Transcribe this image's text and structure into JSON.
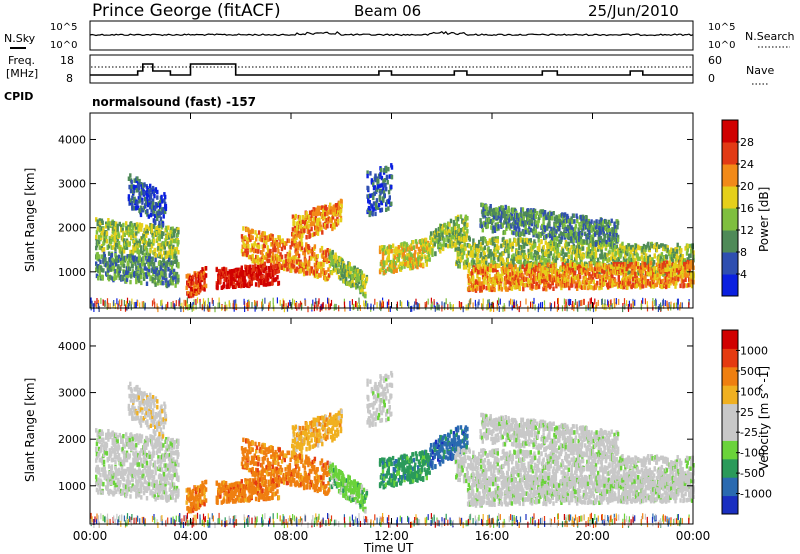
{
  "header": {
    "station": "Prince George (fitACF)",
    "beam": "Beam 06",
    "date": "25/Jun/2010"
  },
  "noise_panel": {
    "left_label": "N.Sky",
    "right_label": "N.Search",
    "left_ticks": [
      "10^5",
      "10^0"
    ],
    "right_ticks": [
      "10^5",
      "10^0"
    ]
  },
  "freq_panel": {
    "left_label_1": "Freq.",
    "left_label_2": "[MHz]",
    "right_label": "Nave",
    "left_ticks": [
      "18",
      "8"
    ],
    "right_ticks": [
      "60",
      "0"
    ],
    "cpid_label": "CPID",
    "cpid_value": "normalsound (fast) -157"
  },
  "chart_data": [
    {
      "type": "heatmap",
      "title": "",
      "ylabel": "Slant Range [km]",
      "xlabel": "",
      "ylim": [
        180,
        4600
      ],
      "xlim": [
        "00:00",
        "24:00"
      ],
      "y_ticks": [
        "1000",
        "2000",
        "3000",
        "4000"
      ],
      "x_ticks": [
        "00:00",
        "04:00",
        "08:00",
        "12:00",
        "16:00",
        "20:00",
        "00:00"
      ],
      "colorbar_label": "Power [dB]",
      "colorbar_ticks": [
        "4",
        "8",
        "12",
        "16",
        "20",
        "24",
        "28"
      ],
      "colorbar_colors": [
        "#0b20e0",
        "#2f4fb0",
        "#4f8a58",
        "#7fbf3f",
        "#e5cf1a",
        "#f28a18",
        "#e23a15",
        "#d00000"
      ]
    },
    {
      "type": "heatmap",
      "title": "",
      "ylabel": "Slant Range [km]",
      "xlabel": "Time UT",
      "ylim": [
        180,
        4600
      ],
      "xlim": [
        "00:00",
        "24:00"
      ],
      "y_ticks": [
        "1000",
        "2000",
        "3000",
        "4000"
      ],
      "x_ticks": [
        "00:00",
        "04:00",
        "08:00",
        "12:00",
        "16:00",
        "20:00",
        "00:00"
      ],
      "colorbar_label": "Velocity [m s^-1]",
      "colorbar_ticks": [
        "1000",
        "500",
        "100",
        "25",
        "-25",
        "-100",
        "-500",
        "-1000"
      ],
      "colorbar_colors": [
        "#1a2fc0",
        "#2a6ab0",
        "#2a9a5a",
        "#6ad33a",
        "#c8c8c8",
        "#c8c8c8",
        "#f0b020",
        "#ef7f10",
        "#e53a10",
        "#d00000"
      ]
    }
  ]
}
